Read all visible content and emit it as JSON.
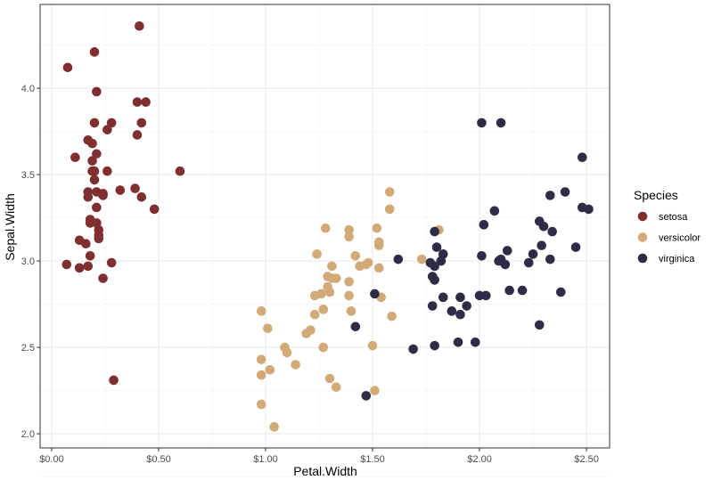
{
  "chart_data": {
    "type": "scatter",
    "title": "",
    "xlabel": "Petal.Width",
    "ylabel": "Sepal.Width",
    "xlim": [
      -0.054,
      2.608
    ],
    "ylim": [
      1.918,
      4.485
    ],
    "xticks": [
      0,
      0.5,
      1.0,
      1.5,
      2.0,
      2.5
    ],
    "xtick_labels": [
      "$0.00",
      "$0.50",
      "$1.00",
      "$1.50",
      "$2.00",
      "$2.50"
    ],
    "yticks": [
      2.0,
      2.5,
      3.0,
      3.5,
      4.0
    ],
    "ytick_labels": [
      "2.0",
      "2.5",
      "3.0",
      "3.5",
      "4.0"
    ],
    "grid": true,
    "legend": {
      "title": "Species",
      "position": "right"
    },
    "series": [
      {
        "name": "setosa",
        "color": "#7f2f2f",
        "x": [
          0.41,
          0.2,
          0.075,
          0.21,
          0.44,
          0.4,
          0.42,
          0.28,
          0.2,
          0.26,
          0.4,
          0.17,
          0.19,
          0.11,
          0.21,
          0.19,
          0.6,
          0.19,
          0.2,
          0.26,
          0.2,
          0.39,
          0.32,
          0.17,
          0.21,
          0.24,
          0.42,
          0.17,
          0.24,
          0.21,
          0.48,
          0.18,
          0.18,
          0.21,
          0.22,
          0.22,
          0.13,
          0.16,
          0.22,
          0.18,
          0.07,
          0.28,
          0.13,
          0.17,
          0.24,
          0.29
        ],
        "y": [
          4.36,
          4.21,
          4.12,
          3.98,
          3.92,
          3.92,
          3.8,
          3.8,
          3.8,
          3.76,
          3.73,
          3.7,
          3.68,
          3.6,
          3.62,
          3.58,
          3.52,
          3.52,
          3.52,
          3.52,
          3.47,
          3.42,
          3.41,
          3.4,
          3.4,
          3.39,
          3.37,
          3.37,
          3.38,
          3.31,
          3.3,
          3.24,
          3.22,
          3.22,
          3.18,
          3.15,
          3.12,
          3.1,
          3.13,
          3.03,
          2.98,
          2.99,
          2.96,
          2.97,
          2.9,
          2.31
        ]
      },
      {
        "name": "versicolor",
        "color": "#d2aa78",
        "x": [
          1.58,
          1.58,
          1.28,
          1.39,
          1.52,
          1.81,
          1.39,
          1.53,
          1.53,
          1.24,
          1.73,
          1.53,
          1.48,
          1.44,
          1.47,
          1.42,
          1.31,
          1.29,
          1.31,
          1.33,
          1.39,
          1.29,
          1.3,
          1.23,
          1.26,
          1.39,
          1.54,
          1.27,
          1.4,
          0.98,
          1.59,
          1.23,
          1.21,
          1.19,
          1.01,
          1.27,
          1.5,
          1.09,
          1.1,
          0.98,
          1.02,
          1.14,
          0.98,
          1.3,
          1.33,
          1.51,
          0.98,
          1.04
        ],
        "y": [
          3.4,
          3.3,
          3.19,
          3.18,
          3.19,
          3.18,
          3.14,
          3.11,
          3.09,
          3.04,
          3.01,
          2.96,
          2.99,
          2.97,
          2.98,
          3.03,
          2.97,
          2.91,
          2.9,
          2.9,
          2.88,
          2.85,
          2.82,
          2.8,
          2.81,
          2.8,
          2.79,
          2.72,
          2.71,
          2.71,
          2.68,
          2.69,
          2.6,
          2.58,
          2.61,
          2.5,
          2.51,
          2.5,
          2.47,
          2.43,
          2.37,
          2.4,
          2.34,
          2.32,
          2.27,
          2.25,
          2.17,
          2.04
        ]
      },
      {
        "name": "virginica",
        "color": "#2e2d47",
        "x": [
          2.01,
          2.1,
          2.48,
          2.4,
          2.33,
          2.07,
          2.48,
          2.51,
          2.28,
          2.3,
          2.02,
          2.34,
          1.79,
          2.29,
          2.45,
          2.13,
          1.8,
          1.62,
          1.83,
          2.01,
          2.25,
          2.1,
          2.33,
          1.77,
          1.82,
          1.79,
          2.09,
          2.12,
          2.23,
          1.78,
          1.79,
          1.51,
          2.14,
          2.2,
          2.38,
          1.83,
          1.91,
          2.0,
          2.03,
          1.78,
          1.94,
          1.87,
          1.91,
          1.42,
          2.28,
          1.69,
          1.79,
          1.9,
          1.98,
          1.47
        ],
        "y": [
          3.8,
          3.8,
          3.6,
          3.4,
          3.38,
          3.29,
          3.31,
          3.3,
          3.23,
          3.2,
          3.21,
          3.17,
          3.17,
          3.09,
          3.08,
          3.06,
          3.08,
          3.01,
          3.04,
          3.03,
          3.04,
          3.01,
          3.01,
          2.99,
          3.0,
          2.97,
          3.0,
          2.98,
          2.99,
          2.91,
          2.89,
          2.81,
          2.83,
          2.83,
          2.82,
          2.79,
          2.79,
          2.8,
          2.8,
          2.74,
          2.74,
          2.71,
          2.69,
          2.62,
          2.63,
          2.49,
          2.51,
          2.53,
          2.53,
          2.22
        ]
      }
    ]
  }
}
